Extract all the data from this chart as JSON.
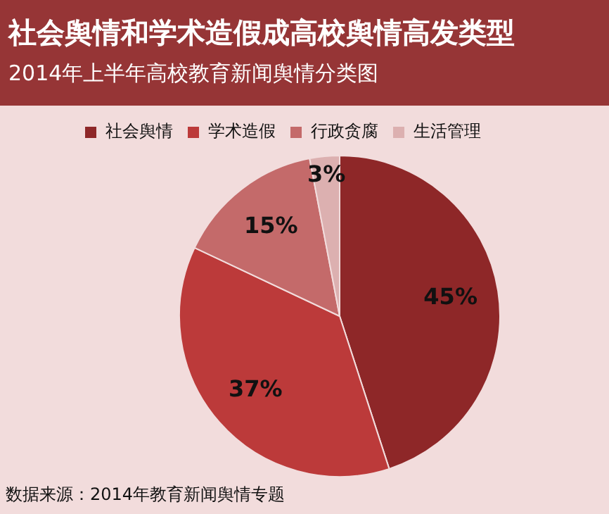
{
  "chart_data": {
    "type": "pie",
    "title": "社会舆情和学术造假成高校舆情高发类型",
    "subtitle": "2014年上半年高校教育新闻舆情分类图",
    "categories": [
      "社会舆情",
      "学术造假",
      "行政贪腐",
      "生活管理"
    ],
    "values": [
      45,
      37,
      15,
      3
    ],
    "colors": [
      "#8e2728",
      "#bc3a3a",
      "#c46a6a",
      "#dcb0b0"
    ],
    "value_labels": [
      "45%",
      "37%",
      "15%",
      "3%"
    ],
    "legend": "top left",
    "annotations": [
      "数据来源：2014年教育新闻舆情专题"
    ]
  }
}
